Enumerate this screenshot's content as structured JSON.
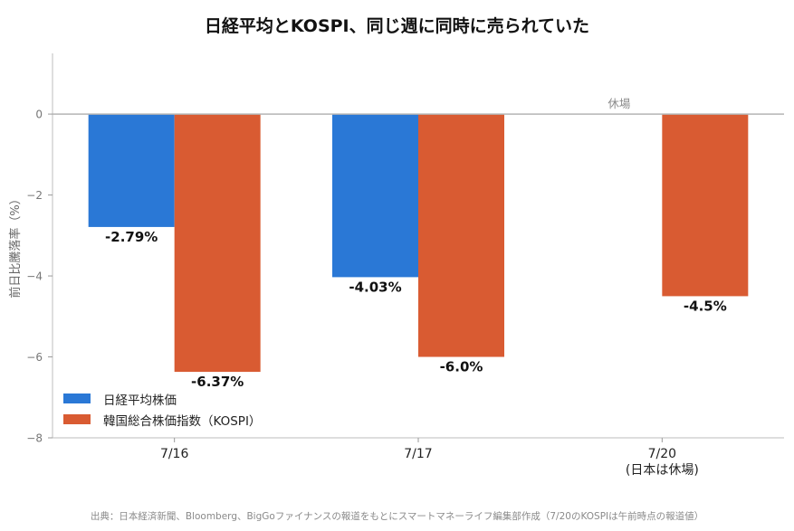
{
  "chart_data": {
    "type": "bar",
    "title": "日経平均とKOSPI、同じ週に同時に売られていた",
    "ylabel": "前日比騰落率（%）",
    "xlabel": "",
    "ylim": [
      -8,
      1.5
    ],
    "yticks": [
      0,
      -2,
      -4,
      -6,
      -8
    ],
    "categories": [
      "7/16",
      "7/17",
      "7/20\n(日本は休場)"
    ],
    "series": [
      {
        "name": "日経平均株価",
        "color": "#2a78d6",
        "values": [
          -2.79,
          -4.03,
          null
        ],
        "labels": [
          "-2.79%",
          "-4.03%",
          ""
        ]
      },
      {
        "name": "韓国総合株価指数（KOSPI）",
        "color": "#d95b32",
        "values": [
          -6.37,
          -6.0,
          -4.5
        ],
        "labels": [
          "-6.37%",
          "-6.0%",
          "-4.5%"
        ]
      }
    ],
    "annotations": [
      {
        "text": "休場"
      }
    ],
    "legend_position": "lower-left",
    "grid": false
  },
  "source": "出典：日本経済新聞、Bloomberg、BigGoファイナンスの報道をもとにスマートマネーライフ編集部作成（7/20のKOSPIは午前時点の報道値）"
}
